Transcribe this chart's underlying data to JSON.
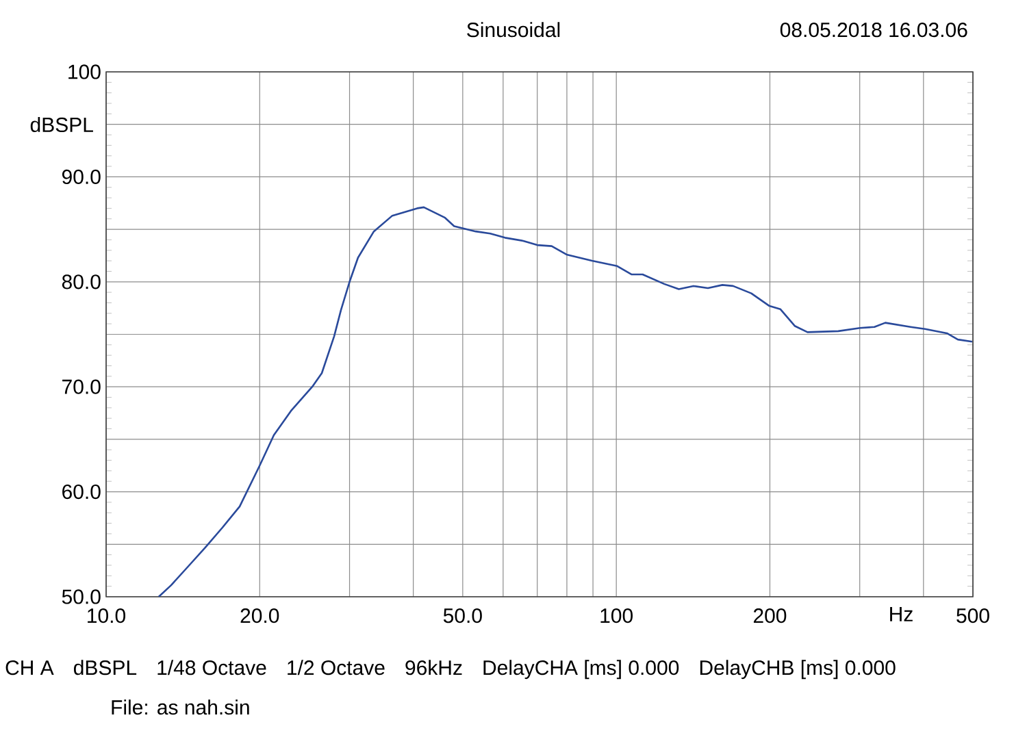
{
  "chart_data": {
    "type": "line",
    "title": "Sinusoidal",
    "xlabel": "Hz",
    "ylabel": "dBSPL",
    "log": "x",
    "grid": true,
    "marker": "none",
    "line_style": "solid",
    "annotations": [
      "08.05.2018 16.03.06",
      "CH A",
      "dBSPL",
      "1/48 Octave",
      "1/2 Octave",
      "96kHz",
      "DelayCHA [ms] 0.000",
      "DelayCHB [ms] 0.000",
      "File: as nah.sin"
    ],
    "xlim": [
      10,
      500
    ],
    "ylim": [
      50,
      100
    ],
    "xticks": [
      {
        "value": 10,
        "label": "10.0"
      },
      {
        "value": 20,
        "label": "20.0"
      },
      {
        "value": 30,
        "label": null
      },
      {
        "value": 40,
        "label": null
      },
      {
        "value": 50,
        "label": "50.0"
      },
      {
        "value": 60,
        "label": null
      },
      {
        "value": 70,
        "label": null
      },
      {
        "value": 80,
        "label": null
      },
      {
        "value": 90,
        "label": null
      },
      {
        "value": 100,
        "label": "100"
      },
      {
        "value": 200,
        "label": "200"
      },
      {
        "value": 300,
        "label": null
      },
      {
        "value": 400,
        "label": null
      },
      {
        "value": 500,
        "label": "500"
      }
    ],
    "yticks": [
      {
        "value": 50,
        "label": "50.0"
      },
      {
        "value": 55,
        "label": null
      },
      {
        "value": 60,
        "label": "60.0"
      },
      {
        "value": 65,
        "label": null
      },
      {
        "value": 70,
        "label": "70.0"
      },
      {
        "value": 75,
        "label": null
      },
      {
        "value": 80,
        "label": "80.0"
      },
      {
        "value": 85,
        "label": null
      },
      {
        "value": 90,
        "label": "90.0"
      },
      {
        "value": 95,
        "label": null
      },
      {
        "value": 100,
        "label": "100"
      }
    ],
    "series": [
      {
        "color": "#2a4a9b",
        "x": [
          12.68,
          13.41,
          14.49,
          15.65,
          16.91,
          18.27,
          20.0,
          21.32,
          23.03,
          25.35,
          26.47,
          27.98,
          28.86,
          30.0,
          31.17,
          33.48,
          36.39,
          40.7,
          41.95,
          46.16,
          48.1,
          53.0,
          56.6,
          60.5,
          65.7,
          70.0,
          74.7,
          79.9,
          89.6,
          100.4,
          107.2,
          112.6,
          124.1,
          132.6,
          141.6,
          151.2,
          161.4,
          169.4,
          183.9,
          199.6,
          209.6,
          223.7,
          237.0,
          272.3,
          300.3,
          320.6,
          336.7,
          377.4,
          403.0,
          444.6,
          467.1,
          498.3
        ],
        "values": [
          50.0,
          51.1,
          52.9,
          54.7,
          56.6,
          58.6,
          62.5,
          65.4,
          67.7,
          70.0,
          71.3,
          74.8,
          77.3,
          80.0,
          82.3,
          84.8,
          86.3,
          87.0,
          87.1,
          86.1,
          85.3,
          84.8,
          84.6,
          84.2,
          83.9,
          83.5,
          83.4,
          82.6,
          82.0,
          81.5,
          80.7,
          80.7,
          79.8,
          79.3,
          79.6,
          79.4,
          79.7,
          79.6,
          78.9,
          77.7,
          77.4,
          75.8,
          75.2,
          75.3,
          75.6,
          75.7,
          76.1,
          75.7,
          75.5,
          75.1,
          74.5,
          74.3
        ]
      }
    ]
  }
}
